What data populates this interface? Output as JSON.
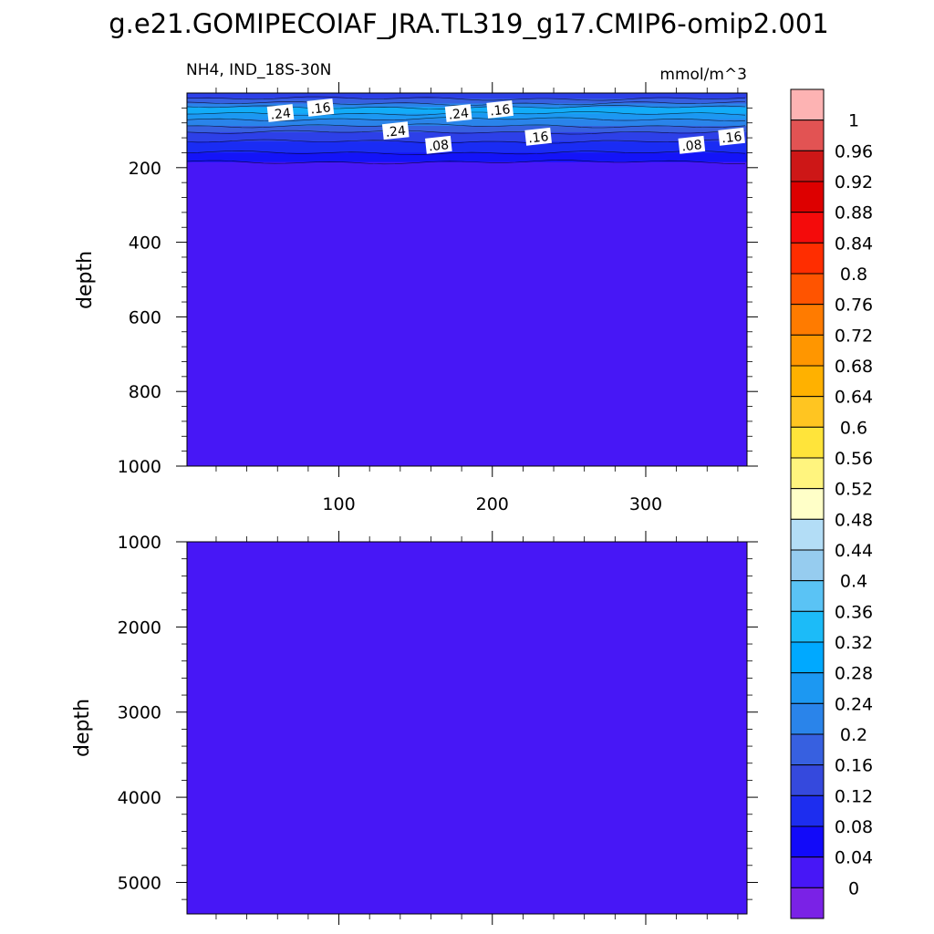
{
  "title": "g.e21.GOMIPECOIAF_JRA.TL319_g17.CMIP6-omip2.001",
  "colors": {
    "fill_zero_band": "#4717F6",
    "frame": "#000000"
  },
  "chart_data": [
    {
      "type": "heatmap",
      "panel": "upper",
      "left_label": "NH4, IND_18S-30N",
      "right_label": "mmol/m^3",
      "ylabel": "depth",
      "xlim": [
        1,
        366
      ],
      "ylim": [
        0,
        1000
      ],
      "y_reversed": true,
      "x_ticks": [
        100,
        200,
        300
      ],
      "x_tick_labels": [
        "100",
        "200",
        "300"
      ],
      "y_ticks": [
        200,
        400,
        600,
        800,
        1000
      ],
      "y_tick_labels": [
        "200",
        "400",
        "600",
        "800",
        "1000"
      ],
      "bands": [
        {
          "depth_top": 0,
          "depth_bottom": 15,
          "color": "#2D40E8"
        },
        {
          "depth_top": 15,
          "depth_bottom": 28,
          "color": "#3760E0"
        },
        {
          "depth_top": 28,
          "depth_bottom": 38,
          "color": "#2A84EA"
        },
        {
          "depth_top": 38,
          "depth_bottom": 55,
          "color": "#12ACF8"
        },
        {
          "depth_top": 55,
          "depth_bottom": 70,
          "color": "#1C98F2"
        },
        {
          "depth_top": 70,
          "depth_bottom": 88,
          "color": "#2A84EA"
        },
        {
          "depth_top": 88,
          "depth_bottom": 105,
          "color": "#3760E0"
        },
        {
          "depth_top": 105,
          "depth_bottom": 130,
          "color": "#2D40E8"
        },
        {
          "depth_top": 130,
          "depth_bottom": 160,
          "color": "#1A2CF4"
        },
        {
          "depth_top": 160,
          "depth_bottom": 185,
          "color": "#1414F8"
        },
        {
          "depth_top": 185,
          "depth_bottom": 1000,
          "color": "#4717F6"
        }
      ],
      "contour_labels": [
        {
          "text": ".24",
          "x": 62,
          "depth": 55
        },
        {
          "text": ".16",
          "x": 88,
          "depth": 40
        },
        {
          "text": ".24",
          "x": 137,
          "depth": 102
        },
        {
          "text": ".08",
          "x": 165,
          "depth": 140
        },
        {
          "text": ".24",
          "x": 178,
          "depth": 55
        },
        {
          "text": ".16",
          "x": 205,
          "depth": 45
        },
        {
          "text": ".16",
          "x": 230,
          "depth": 118
        },
        {
          "text": ".08",
          "x": 330,
          "depth": 140
        },
        {
          "text": ".16",
          "x": 356,
          "depth": 118
        }
      ]
    },
    {
      "type": "heatmap",
      "panel": "lower",
      "ylabel": "depth",
      "xlim": [
        1,
        366
      ],
      "ylim": [
        1000,
        5370
      ],
      "y_reversed": true,
      "y_ticks": [
        1000,
        2000,
        3000,
        4000,
        5000
      ],
      "y_tick_labels": [
        "1000",
        "2000",
        "3000",
        "4000",
        "5000"
      ],
      "bands": [
        {
          "depth_top": 1000,
          "depth_bottom": 5370,
          "color": "#4717F6"
        }
      ]
    },
    {
      "type": "colorbar",
      "levels": [
        "1",
        "0.96",
        "0.92",
        "0.88",
        "0.84",
        "0.8",
        "0.76",
        "0.72",
        "0.68",
        "0.64",
        "0.6",
        "0.56",
        "0.52",
        "0.48",
        "0.44",
        "0.4",
        "0.36",
        "0.32",
        "0.28",
        "0.24",
        "0.2",
        "0.16",
        "0.12",
        "0.08",
        "0.04",
        "0"
      ],
      "colors": [
        "#FDB3B3",
        "#E25353",
        "#CD1717",
        "#DD0000",
        "#F40B0B",
        "#FF2D00",
        "#FF5400",
        "#FF7B00",
        "#FF9600",
        "#FFB100",
        "#FFC521",
        "#FFE43A",
        "#FFF47E",
        "#FFFFC8",
        "#B3DDF6",
        "#96CCEF",
        "#5AC3F5",
        "#1CBBF8",
        "#00A9FF",
        "#1C98F2",
        "#2A84EA",
        "#3760E0",
        "#3549DD",
        "#1D2DEF",
        "#120AF9",
        "#4717F6",
        "#7A22E6"
      ]
    }
  ]
}
